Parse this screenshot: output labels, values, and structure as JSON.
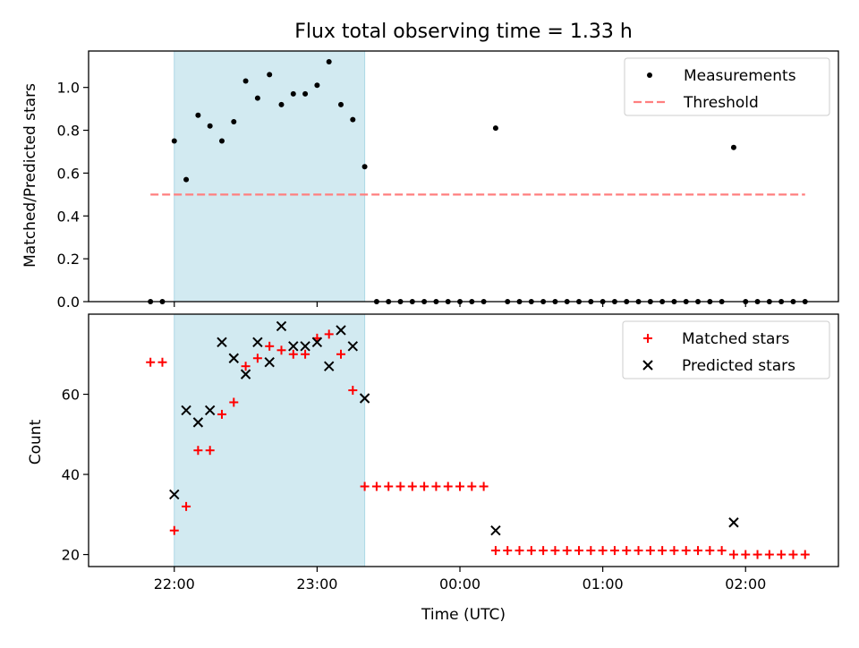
{
  "figure": {
    "title": "Flux total observing time = 1.33 h",
    "xlabel": "Time (UTC)",
    "xticks": [
      "22:00",
      "23:00",
      "00:00",
      "01:00",
      "02:00"
    ],
    "colors": {
      "shade": "#add8e6",
      "threshold": "#ff7f7f",
      "matched": "#ff0000",
      "predicted": "#000000",
      "measurement": "#000000"
    }
  },
  "chart_data": [
    {
      "type": "scatter",
      "ylabel": "Matched/Predicted stars",
      "xlim": [
        "21:24",
        "02:39"
      ],
      "ylim": [
        0,
        1.17
      ],
      "yticks": [
        "0.0",
        "0.2",
        "0.4",
        "0.6",
        "0.8",
        "1.0"
      ],
      "shaded_interval": [
        "22:00",
        "23:20"
      ],
      "legend": {
        "position": "top-right",
        "entries": [
          "Measurements",
          "Threshold"
        ]
      },
      "threshold": {
        "name": "Threshold",
        "value": 0.5,
        "x_range": [
          "21:50",
          "02:25"
        ]
      },
      "series": [
        {
          "name": "Measurements",
          "x": [
            "21:50",
            "21:55",
            "22:00",
            "22:05",
            "22:10",
            "22:15",
            "22:20",
            "22:25",
            "22:30",
            "22:35",
            "22:40",
            "22:45",
            "22:50",
            "22:55",
            "23:00",
            "23:05",
            "23:10",
            "23:15",
            "23:20",
            "23:25",
            "23:30",
            "23:35",
            "23:40",
            "23:45",
            "23:50",
            "23:55",
            "00:00",
            "00:05",
            "00:10",
            "00:15",
            "00:20",
            "00:25",
            "00:30",
            "00:35",
            "00:40",
            "00:45",
            "00:50",
            "00:55",
            "01:00",
            "01:05",
            "01:10",
            "01:15",
            "01:20",
            "01:25",
            "01:30",
            "01:35",
            "01:40",
            "01:45",
            "01:50",
            "01:55",
            "02:00",
            "02:05",
            "02:10",
            "02:15",
            "02:20",
            "02:25"
          ],
          "y": [
            0,
            0,
            0.75,
            0.57,
            0.87,
            0.82,
            0.75,
            0.84,
            1.03,
            0.95,
            1.06,
            0.92,
            0.97,
            0.97,
            1.01,
            1.12,
            0.92,
            0.85,
            0.63,
            0,
            0,
            0,
            0,
            0,
            0,
            0,
            0,
            0,
            0,
            0.81,
            0,
            0,
            0,
            0,
            0,
            0,
            0,
            0,
            0,
            0,
            0,
            0,
            0,
            0,
            0,
            0,
            0,
            0,
            0,
            0.72,
            0,
            0,
            0,
            0,
            0,
            0
          ]
        }
      ]
    },
    {
      "type": "scatter",
      "ylabel": "Count",
      "xlim": [
        "21:24",
        "02:39"
      ],
      "ylim": [
        17,
        80
      ],
      "yticks": [
        "20",
        "40",
        "60"
      ],
      "shaded_interval": [
        "22:00",
        "23:20"
      ],
      "legend": {
        "position": "top-right",
        "entries": [
          "Matched stars",
          "Predicted stars"
        ]
      },
      "series": [
        {
          "name": "Matched stars",
          "x": [
            "21:50",
            "21:55",
            "22:00",
            "22:05",
            "22:10",
            "22:15",
            "22:20",
            "22:25",
            "22:30",
            "22:35",
            "22:40",
            "22:45",
            "22:50",
            "22:55",
            "23:00",
            "23:05",
            "23:10",
            "23:15",
            "23:20",
            "23:25",
            "23:30",
            "23:35",
            "23:40",
            "23:45",
            "23:50",
            "23:55",
            "00:00",
            "00:05",
            "00:10",
            "00:15",
            "00:20",
            "00:25",
            "00:30",
            "00:35",
            "00:40",
            "00:45",
            "00:50",
            "00:55",
            "01:00",
            "01:05",
            "01:10",
            "01:15",
            "01:20",
            "01:25",
            "01:30",
            "01:35",
            "01:40",
            "01:45",
            "01:50",
            "01:55",
            "02:00",
            "02:05",
            "02:10",
            "02:15",
            "02:20",
            "02:25"
          ],
          "y": [
            68,
            68,
            26,
            32,
            46,
            46,
            55,
            58,
            67,
            69,
            72,
            71,
            70,
            70,
            74,
            75,
            70,
            61,
            37,
            37,
            37,
            37,
            37,
            37,
            37,
            37,
            37,
            37,
            37,
            21,
            21,
            21,
            21,
            21,
            21,
            21,
            21,
            21,
            21,
            21,
            21,
            21,
            21,
            21,
            21,
            21,
            21,
            21,
            21,
            20,
            20,
            20,
            20,
            20,
            20,
            20
          ]
        },
        {
          "name": "Predicted stars",
          "x": [
            "22:00",
            "22:05",
            "22:10",
            "22:15",
            "22:20",
            "22:25",
            "22:30",
            "22:35",
            "22:40",
            "22:45",
            "22:50",
            "22:55",
            "23:00",
            "23:05",
            "23:10",
            "23:15",
            "23:20",
            "00:15",
            "01:55"
          ],
          "y": [
            35,
            56,
            53,
            56,
            73,
            69,
            65,
            73,
            68,
            77,
            72,
            72,
            73,
            67,
            76,
            72,
            59,
            26,
            28
          ]
        }
      ]
    }
  ]
}
